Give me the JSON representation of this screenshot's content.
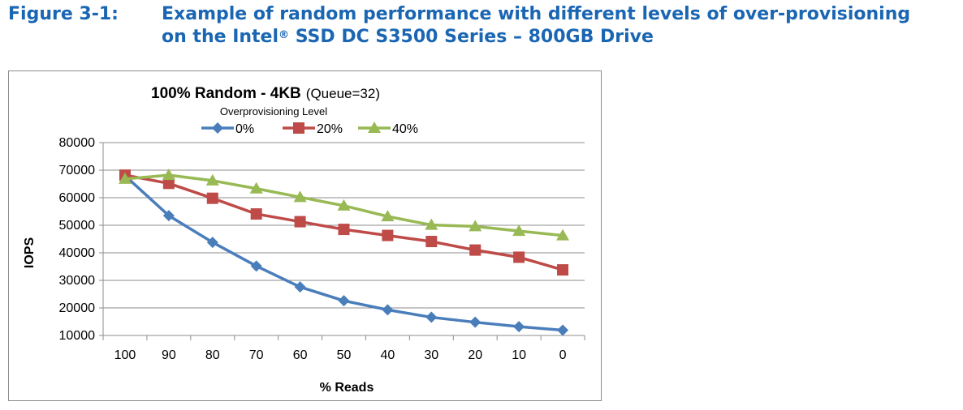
{
  "figure": {
    "label": "Figure 3-1:",
    "title_line1": "Example of random performance with different levels of over-provisioning",
    "title_line2_prefix": "on the Intel",
    "title_line2_sup": "®",
    "title_line2_suffix": " SSD DC S3500 Series – 800GB Drive"
  },
  "chart_data": {
    "type": "line",
    "title": "100% Random  - 4KB",
    "title_suffix": "(Queue=32)",
    "legend_title": "Overprovisioning Level",
    "legend_position": "top",
    "xlabel": "% Reads",
    "ylabel": "IOPS",
    "categories": [
      "100",
      "90",
      "80",
      "70",
      "60",
      "50",
      "40",
      "30",
      "20",
      "10",
      "0"
    ],
    "ylim": [
      10000,
      80000
    ],
    "yticks": [
      "80000",
      "70000",
      "60000",
      "50000",
      "40000",
      "30000",
      "20000",
      "10000"
    ],
    "grid": true,
    "series": [
      {
        "name": "0%",
        "color": "#4a7ebb",
        "marker": "diamond",
        "values": [
          68000,
          53500,
          43800,
          35200,
          27600,
          22600,
          19300,
          16600,
          14800,
          13200,
          11900
        ]
      },
      {
        "name": "20%",
        "color": "#be4b48",
        "marker": "square",
        "values": [
          68200,
          65200,
          59800,
          54100,
          51300,
          48500,
          46300,
          44100,
          41000,
          38400,
          33800
        ]
      },
      {
        "name": "40%",
        "color": "#98b954",
        "marker": "triangle",
        "values": [
          66800,
          68200,
          66200,
          63300,
          60200,
          57100,
          53200,
          50100,
          49600,
          47900,
          46300
        ]
      }
    ]
  }
}
